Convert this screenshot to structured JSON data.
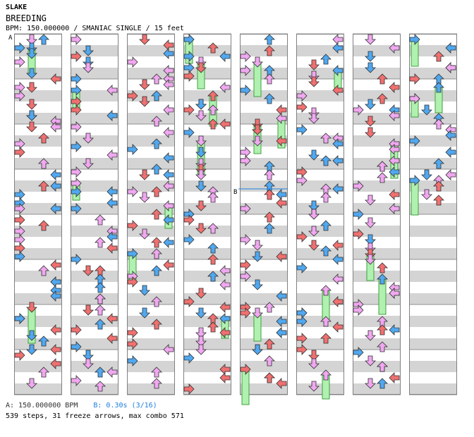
{
  "header": {
    "artist": "SLAKE",
    "title": "BREEDING",
    "meta": "BPM: 150.000000 / SMANIAC SINGLE / 15 feet"
  },
  "markers": {
    "a": "A",
    "b": "B"
  },
  "footer": {
    "bpm_a": "A: 150.000000 BPM",
    "bpm_b": "B: 0.30s (3/16)",
    "stats": "539 steps, 31 freeze arrows, max combo 571"
  },
  "colors": {
    "quarter": "#f07070",
    "eighth": "#50a8f0",
    "sixteenth": "#f0a8f0",
    "freeze": "#b0f0b0",
    "twelfth": "#60f060",
    "yellow": "#f8f020",
    "stripe": "#d4d4d4"
  },
  "columns": 8
}
